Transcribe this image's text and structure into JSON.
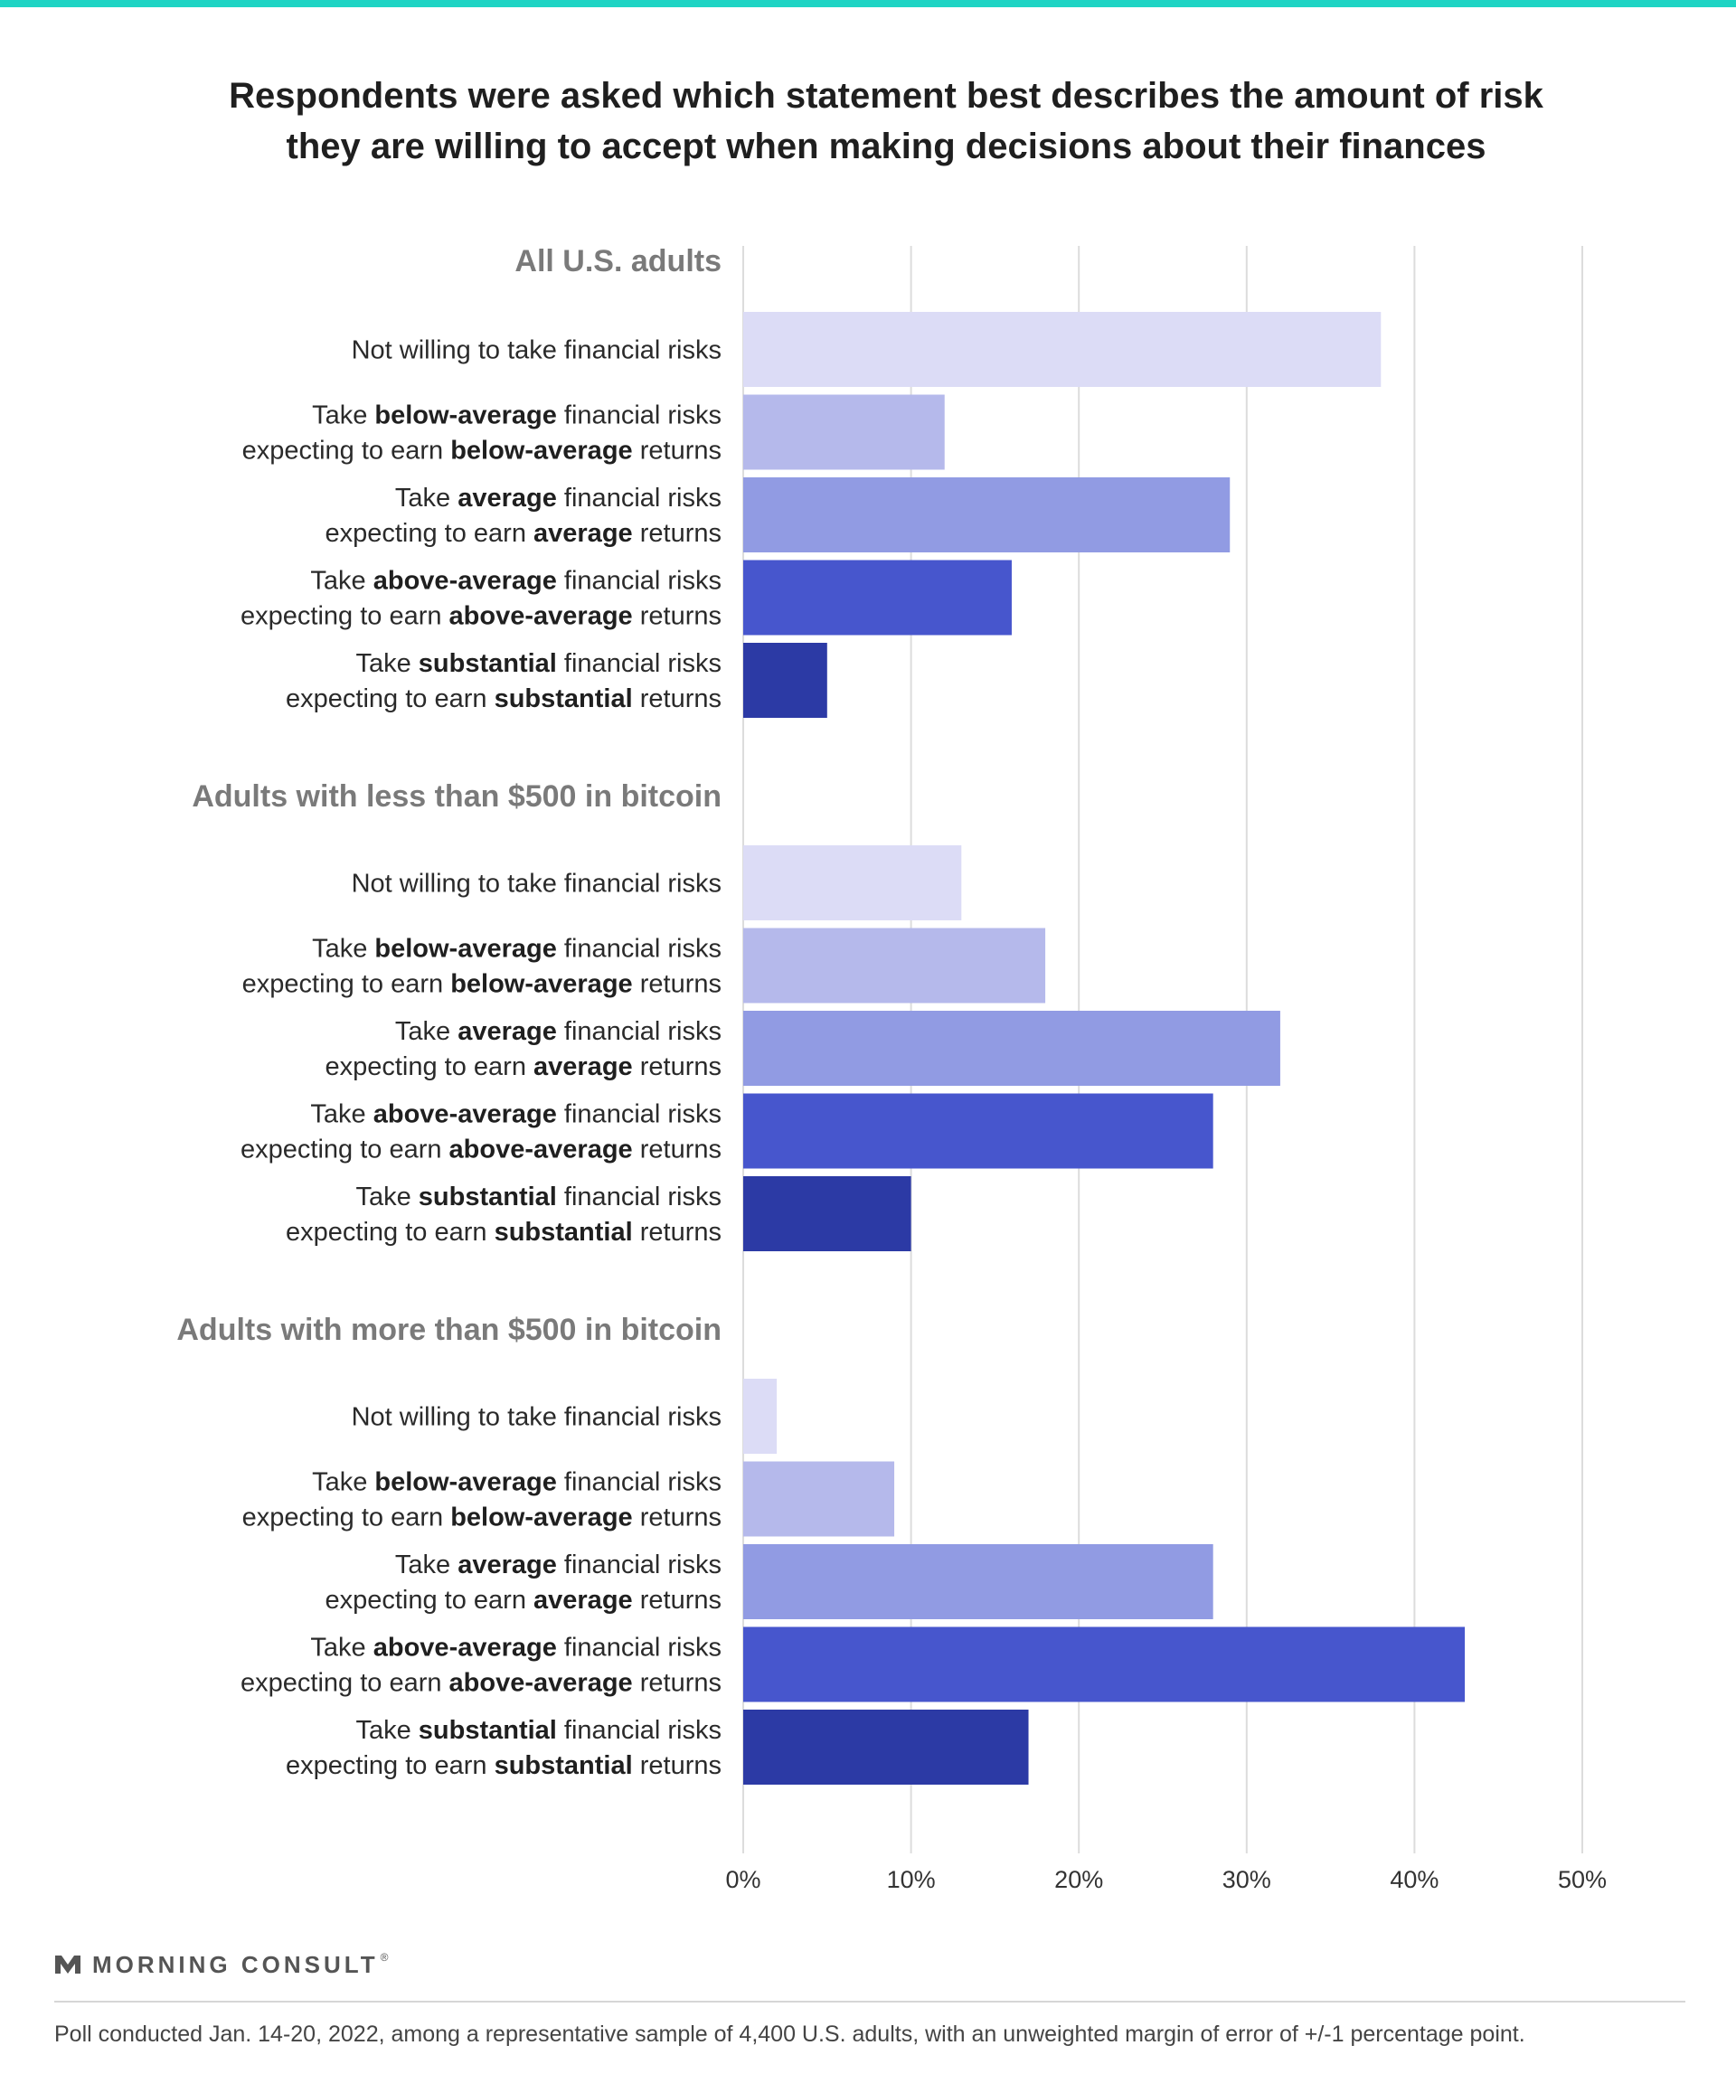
{
  "colors": {
    "top_bar": "#1fd4c4",
    "gridline": "#dcdcdc",
    "group_label": "#7a7a7a",
    "bars": [
      "#dcdcf6",
      "#b5b9eb",
      "#919be3",
      "#4756cd",
      "#2c3aa5"
    ]
  },
  "title": {
    "line1": "Respondents were asked which statement best describes the amount of risk",
    "line2": "they are willing to accept when making decisions about their finances"
  },
  "brand": {
    "name": "MORNING CONSULT",
    "mark": "®",
    "icon": "morning-consult-logo-icon"
  },
  "footnote": "Poll conducted Jan. 14-20, 2022, among a representative sample of 4,400 U.S. adults, with an unweighted margin of error of +/-1 percentage point.",
  "chart_data": {
    "type": "bar",
    "orientation": "horizontal",
    "title": "Respondents were asked which statement best describes the amount of risk they are willing to accept when making decisions about their finances",
    "xlabel": "",
    "ylabel": "",
    "xlim": [
      0,
      50
    ],
    "x_ticks": [
      0,
      10,
      20,
      30,
      40,
      50
    ],
    "tick_suffix": "%",
    "grid": true,
    "legend": "none",
    "categories": [
      [
        {
          "t": "Not willing to take financial risks",
          "b": false
        }
      ],
      [
        {
          "t": "Take ",
          "b": false
        },
        {
          "t": "below-average",
          "b": true
        },
        {
          "t": " financial risks",
          "b": false
        },
        {
          "t": "|",
          "b": false
        },
        {
          "t": "expecting to earn ",
          "b": false
        },
        {
          "t": "below-average",
          "b": true
        },
        {
          "t": " returns",
          "b": false
        }
      ],
      [
        {
          "t": "Take ",
          "b": false
        },
        {
          "t": "average",
          "b": true
        },
        {
          "t": " financial risks",
          "b": false
        },
        {
          "t": "|",
          "b": false
        },
        {
          "t": "expecting to earn ",
          "b": false
        },
        {
          "t": "average",
          "b": true
        },
        {
          "t": " returns",
          "b": false
        }
      ],
      [
        {
          "t": "Take ",
          "b": false
        },
        {
          "t": "above-average",
          "b": true
        },
        {
          "t": " financial risks",
          "b": false
        },
        {
          "t": "|",
          "b": false
        },
        {
          "t": "expecting to earn ",
          "b": false
        },
        {
          "t": "above-average",
          "b": true
        },
        {
          "t": " returns",
          "b": false
        }
      ],
      [
        {
          "t": "Take ",
          "b": false
        },
        {
          "t": "substantial",
          "b": true
        },
        {
          "t": " financial risks",
          "b": false
        },
        {
          "t": "|",
          "b": false
        },
        {
          "t": "expecting to earn ",
          "b": false
        },
        {
          "t": "substantial",
          "b": true
        },
        {
          "t": " returns",
          "b": false
        }
      ]
    ],
    "groups": [
      {
        "name": "All U.S. adults",
        "values": [
          38,
          12,
          29,
          16,
          5
        ]
      },
      {
        "name": "Adults with less than $500 in bitcoin",
        "values": [
          13,
          18,
          32,
          28,
          10
        ]
      },
      {
        "name": "Adults with more than $500 in bitcoin",
        "values": [
          2,
          9,
          28,
          43,
          17
        ]
      }
    ]
  }
}
